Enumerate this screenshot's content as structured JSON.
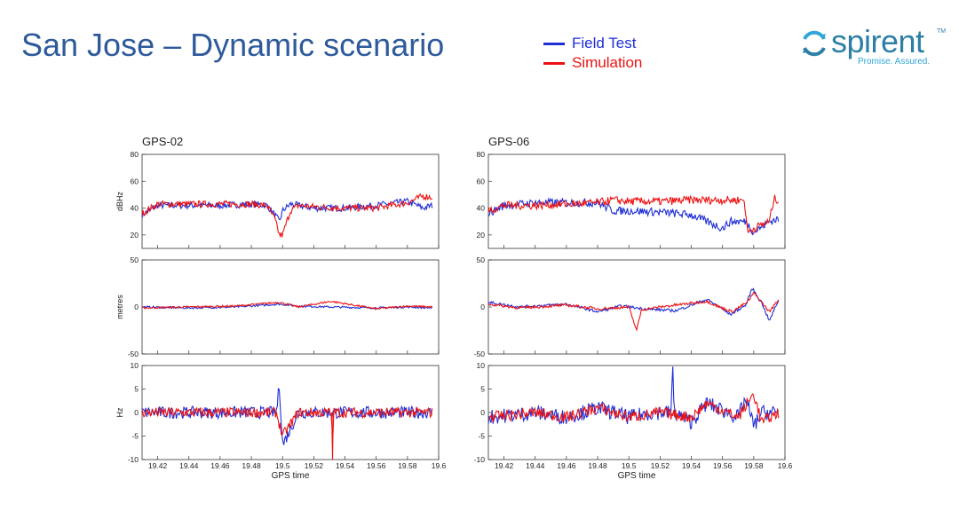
{
  "slide": {
    "title": "San Jose – Dynamic scenario"
  },
  "legend": [
    {
      "label": "Field Test",
      "color": "#1f2fd6"
    },
    {
      "label": "Simulation",
      "color": "#ee1111"
    }
  ],
  "logo": {
    "text": "spirent",
    "tagline": "Promise. Assured.",
    "tm": "TM",
    "color": "#2e7fa6"
  },
  "chart_data": [
    {
      "title": "GPS-02",
      "type": "line",
      "xlabel": "GPS time",
      "xlim": [
        19.41,
        19.6
      ],
      "xticks": [
        19.42,
        19.44,
        19.46,
        19.48,
        19.5,
        19.52,
        19.54,
        19.56,
        19.58,
        19.6
      ],
      "panels": [
        {
          "ylabel": "dBHz",
          "ylim": [
            10,
            80
          ],
          "yticks": [
            20,
            40,
            60,
            80
          ],
          "series": [
            {
              "name": "Field Test",
              "color": "#1f2fd6",
              "x": [
                19.41,
                19.42,
                19.44,
                19.46,
                19.48,
                19.49,
                19.495,
                19.498,
                19.5,
                19.505,
                19.51,
                19.52,
                19.54,
                19.56,
                19.58,
                19.59,
                19.596
              ],
              "y": [
                35,
                42,
                42,
                42,
                43,
                42,
                35,
                30,
                38,
                43,
                42,
                40,
                40,
                42,
                45,
                40,
                42
              ],
              "noise": 2.5
            },
            {
              "name": "Simulation",
              "color": "#ee1111",
              "x": [
                19.41,
                19.42,
                19.44,
                19.46,
                19.48,
                19.49,
                19.495,
                19.498,
                19.5,
                19.505,
                19.51,
                19.52,
                19.54,
                19.56,
                19.58,
                19.59,
                19.596
              ],
              "y": [
                36,
                43,
                43,
                43,
                43,
                42,
                32,
                20,
                20,
                38,
                42,
                41,
                40,
                40,
                44,
                49,
                48
              ],
              "noise": 2.5
            }
          ]
        },
        {
          "ylabel": "metres",
          "ylim": [
            -50,
            50
          ],
          "yticks": [
            -50,
            0,
            50
          ],
          "series": [
            {
              "name": "Field Test",
              "color": "#1f2fd6",
              "x": [
                19.41,
                19.44,
                19.47,
                19.498,
                19.51,
                19.53,
                19.56,
                19.58,
                19.596
              ],
              "y": [
                0,
                -1,
                0,
                3,
                1,
                0,
                -1,
                0,
                -1
              ],
              "noise": 1
            },
            {
              "name": "Simulation",
              "color": "#ee1111",
              "x": [
                19.41,
                19.44,
                19.47,
                19.498,
                19.51,
                19.531,
                19.56,
                19.58,
                19.596
              ],
              "y": [
                -1,
                0,
                1,
                5,
                0,
                6,
                -2,
                1,
                0
              ],
              "noise": 1
            }
          ]
        },
        {
          "ylabel": "Hz",
          "ylim": [
            -10,
            10
          ],
          "yticks": [
            -10,
            -5,
            0,
            5,
            10
          ],
          "series": [
            {
              "name": "Field Test",
              "color": "#1f2fd6",
              "x": [
                19.41,
                19.45,
                19.496,
                19.498,
                19.5,
                19.51,
                19.53,
                19.55,
                19.596
              ],
              "y": [
                0,
                0,
                0,
                6,
                -7,
                0,
                0,
                0,
                0
              ],
              "noise": 1.3
            },
            {
              "name": "Simulation",
              "color": "#ee1111",
              "x": [
                19.41,
                19.45,
                19.496,
                19.5,
                19.51,
                19.5315,
                19.532,
                19.5325,
                19.55,
                19.596
              ],
              "y": [
                0,
                0,
                0,
                -5,
                0,
                0,
                -10,
                0,
                0,
                0
              ],
              "noise": 1.1
            }
          ]
        }
      ]
    },
    {
      "title": "GPS-06",
      "type": "line",
      "xlabel": "GPS time",
      "xlim": [
        19.41,
        19.6
      ],
      "xticks": [
        19.42,
        19.44,
        19.46,
        19.48,
        19.5,
        19.52,
        19.54,
        19.56,
        19.58,
        19.6
      ],
      "panels": [
        {
          "ylabel": "",
          "ylim": [
            10,
            80
          ],
          "yticks": [
            20,
            40,
            60,
            80
          ],
          "series": [
            {
              "name": "Field Test",
              "color": "#1f2fd6",
              "x": [
                19.41,
                19.42,
                19.44,
                19.46,
                19.48,
                19.49,
                19.5,
                19.52,
                19.54,
                19.55,
                19.56,
                19.565,
                19.575,
                19.58,
                19.59,
                19.596
              ],
              "y": [
                36,
                42,
                44,
                44,
                44,
                38,
                38,
                37,
                35,
                30,
                25,
                30,
                30,
                22,
                30,
                32
              ],
              "noise": 3
            },
            {
              "name": "Simulation",
              "color": "#ee1111",
              "x": [
                19.41,
                19.42,
                19.44,
                19.46,
                19.48,
                19.49,
                19.5,
                19.52,
                19.54,
                19.56,
                19.574,
                19.576,
                19.58,
                19.59,
                19.593,
                19.596
              ],
              "y": [
                38,
                42,
                42,
                43,
                44,
                46,
                45,
                45,
                46,
                46,
                46,
                22,
                25,
                30,
                47,
                46
              ],
              "noise": 3
            }
          ]
        },
        {
          "ylabel": "",
          "ylim": [
            -50,
            50
          ],
          "yticks": [
            -50,
            0,
            50
          ],
          "series": [
            {
              "name": "Field Test",
              "color": "#1f2fd6",
              "x": [
                19.41,
                19.43,
                19.46,
                19.48,
                19.495,
                19.51,
                19.53,
                19.55,
                19.558,
                19.565,
                19.575,
                19.579,
                19.585,
                19.59,
                19.596
              ],
              "y": [
                5,
                0,
                3,
                -5,
                1,
                -2,
                -4,
                8,
                0,
                -8,
                2,
                20,
                5,
                -15,
                8
              ],
              "noise": 1.5
            },
            {
              "name": "Simulation",
              "color": "#ee1111",
              "x": [
                19.41,
                19.43,
                19.46,
                19.48,
                19.5,
                19.505,
                19.508,
                19.52,
                19.55,
                19.558,
                19.566,
                19.576,
                19.58,
                19.59,
                19.596
              ],
              "y": [
                3,
                -1,
                2,
                -2,
                0,
                -25,
                -3,
                0,
                6,
                0,
                -5,
                5,
                15,
                -5,
                8
              ],
              "noise": 1.5
            }
          ]
        },
        {
          "ylabel": "",
          "ylim": [
            -10,
            10
          ],
          "yticks": [
            -10,
            -5,
            0,
            5,
            10
          ],
          "series": [
            {
              "name": "Field Test",
              "color": "#1f2fd6",
              "x": [
                19.41,
                19.44,
                19.46,
                19.48,
                19.5,
                19.515,
                19.527,
                19.528,
                19.529,
                19.54,
                19.55,
                19.57,
                19.575,
                19.58,
                19.585,
                19.596
              ],
              "y": [
                -1,
                0,
                -1,
                1,
                -1,
                0,
                0,
                10,
                0,
                -2,
                2,
                -1,
                3,
                -3,
                0,
                0
              ],
              "noise": 1.6
            },
            {
              "name": "Simulation",
              "color": "#ee1111",
              "x": [
                19.41,
                19.44,
                19.46,
                19.48,
                19.5,
                19.52,
                19.54,
                19.55,
                19.57,
                19.58,
                19.585,
                19.596
              ],
              "y": [
                -1,
                0,
                -1,
                1,
                -1,
                0,
                -1,
                2,
                -1,
                4,
                -2,
                0
              ],
              "noise": 1.2
            }
          ]
        }
      ]
    }
  ]
}
